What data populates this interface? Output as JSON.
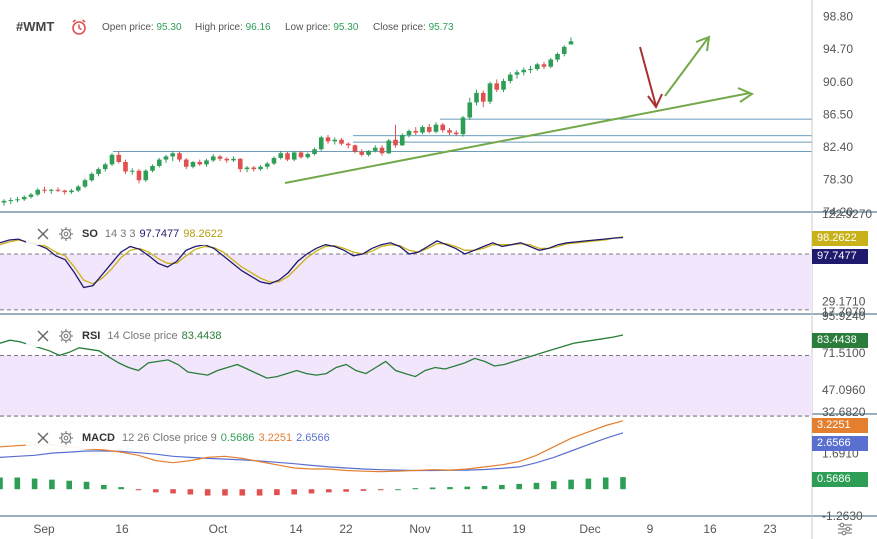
{
  "header": {
    "symbol": "#WMT",
    "open_label": "Open price:",
    "open_value": "95.30",
    "high_label": "High price:",
    "high_value": "96.16",
    "low_label": "Low price:",
    "low_value": "95.30",
    "close_label": "Close price:",
    "close_value": "95.73"
  },
  "indicators": {
    "so": {
      "name": "SO",
      "params": "14 3 3",
      "v1": "97.7477",
      "v2": "98.2622"
    },
    "rsi": {
      "name": "RSI",
      "params": "14 Close price",
      "v1": "83.4438"
    },
    "macd": {
      "name": "MACD",
      "params": "12 26 Close price 9",
      "v1": "0.5686",
      "v2": "3.2251",
      "v3": "2.6566"
    }
  },
  "colors": {
    "up": "#2e9e57",
    "down": "#e05050",
    "so_k": "#1f1a6e",
    "so_d": "#c9b11a",
    "rsi": "#2a7d3a",
    "macd": "#e57f30",
    "signal": "#5a70d0",
    "trendline": "#74a94a",
    "arrow_down": "#a83030",
    "arrow_up": "#74a94a",
    "band_fill": "#f1e6fb",
    "level_line": "#3b7ea6"
  },
  "chart_data": [
    {
      "type": "candlestick",
      "title": "#WMT",
      "ylim": [
        74.2,
        100.9
      ],
      "y_ticks": [
        "98.80",
        "94.70",
        "90.60",
        "86.50",
        "82.40",
        "78.30",
        "74.20"
      ],
      "x_ticks": [
        "Sep",
        "16",
        "Oct",
        "14",
        "22",
        "Nov",
        "11",
        "19",
        "Dec",
        "9",
        "16",
        "23"
      ],
      "series": [
        {
          "o": 75.4,
          "h": 75.8,
          "l": 75.0,
          "c": 75.6
        },
        {
          "o": 75.6,
          "h": 76.0,
          "l": 75.2,
          "c": 75.7
        },
        {
          "o": 75.7,
          "h": 76.1,
          "l": 75.4,
          "c": 75.8
        },
        {
          "o": 75.8,
          "h": 76.3,
          "l": 75.6,
          "c": 76.1
        },
        {
          "o": 76.1,
          "h": 76.6,
          "l": 75.9,
          "c": 76.4
        },
        {
          "o": 76.4,
          "h": 77.2,
          "l": 76.2,
          "c": 77.0
        },
        {
          "o": 77.0,
          "h": 77.4,
          "l": 76.6,
          "c": 76.9
        },
        {
          "o": 76.9,
          "h": 77.1,
          "l": 76.5,
          "c": 77.0
        },
        {
          "o": 77.0,
          "h": 77.3,
          "l": 76.7,
          "c": 76.9
        },
        {
          "o": 76.9,
          "h": 77.0,
          "l": 76.4,
          "c": 76.7
        },
        {
          "o": 76.7,
          "h": 77.1,
          "l": 76.5,
          "c": 76.9
        },
        {
          "o": 76.9,
          "h": 77.6,
          "l": 76.7,
          "c": 77.4
        },
        {
          "o": 77.4,
          "h": 78.4,
          "l": 77.2,
          "c": 78.2
        },
        {
          "o": 78.2,
          "h": 79.2,
          "l": 78.0,
          "c": 79.0
        },
        {
          "o": 79.0,
          "h": 79.8,
          "l": 78.7,
          "c": 79.6
        },
        {
          "o": 79.6,
          "h": 80.4,
          "l": 79.3,
          "c": 80.2
        },
        {
          "o": 80.2,
          "h": 81.6,
          "l": 80.0,
          "c": 81.4
        },
        {
          "o": 81.4,
          "h": 81.9,
          "l": 80.3,
          "c": 80.5
        },
        {
          "o": 80.5,
          "h": 80.8,
          "l": 79.0,
          "c": 79.3
        },
        {
          "o": 79.3,
          "h": 79.7,
          "l": 78.9,
          "c": 79.4
        },
        {
          "o": 79.4,
          "h": 79.6,
          "l": 77.8,
          "c": 78.2
        },
        {
          "o": 78.2,
          "h": 79.6,
          "l": 78.0,
          "c": 79.4
        },
        {
          "o": 79.4,
          "h": 80.2,
          "l": 79.2,
          "c": 80.0
        },
        {
          "o": 80.0,
          "h": 81.0,
          "l": 79.8,
          "c": 80.8
        },
        {
          "o": 80.8,
          "h": 81.4,
          "l": 80.4,
          "c": 81.2
        },
        {
          "o": 81.2,
          "h": 81.9,
          "l": 80.6,
          "c": 81.6
        },
        {
          "o": 81.6,
          "h": 81.8,
          "l": 80.5,
          "c": 80.8
        },
        {
          "o": 80.8,
          "h": 81.0,
          "l": 79.6,
          "c": 79.9
        },
        {
          "o": 79.9,
          "h": 80.6,
          "l": 79.7,
          "c": 80.5
        },
        {
          "o": 80.5,
          "h": 80.8,
          "l": 80.0,
          "c": 80.2
        },
        {
          "o": 80.2,
          "h": 80.9,
          "l": 79.9,
          "c": 80.7
        },
        {
          "o": 80.7,
          "h": 81.5,
          "l": 80.5,
          "c": 81.2
        },
        {
          "o": 81.2,
          "h": 81.4,
          "l": 80.6,
          "c": 80.9
        },
        {
          "o": 80.9,
          "h": 81.1,
          "l": 80.4,
          "c": 80.7
        },
        {
          "o": 80.7,
          "h": 81.2,
          "l": 80.5,
          "c": 80.9
        },
        {
          "o": 80.9,
          "h": 81.0,
          "l": 79.2,
          "c": 79.6
        },
        {
          "o": 79.6,
          "h": 80.0,
          "l": 79.2,
          "c": 79.8
        },
        {
          "o": 79.8,
          "h": 80.0,
          "l": 79.3,
          "c": 79.6
        },
        {
          "o": 79.6,
          "h": 80.1,
          "l": 79.4,
          "c": 79.9
        },
        {
          "o": 79.9,
          "h": 80.5,
          "l": 79.6,
          "c": 80.3
        },
        {
          "o": 80.3,
          "h": 81.2,
          "l": 80.1,
          "c": 81.0
        },
        {
          "o": 81.0,
          "h": 81.9,
          "l": 80.8,
          "c": 81.6
        },
        {
          "o": 81.6,
          "h": 81.8,
          "l": 80.6,
          "c": 80.8
        },
        {
          "o": 80.8,
          "h": 81.9,
          "l": 80.6,
          "c": 81.7
        },
        {
          "o": 81.7,
          "h": 81.9,
          "l": 80.9,
          "c": 81.1
        },
        {
          "o": 81.1,
          "h": 81.7,
          "l": 80.9,
          "c": 81.5
        },
        {
          "o": 81.5,
          "h": 82.3,
          "l": 81.3,
          "c": 82.1
        },
        {
          "o": 82.1,
          "h": 83.8,
          "l": 81.9,
          "c": 83.6
        },
        {
          "o": 83.6,
          "h": 83.9,
          "l": 82.8,
          "c": 83.1
        },
        {
          "o": 83.1,
          "h": 83.6,
          "l": 82.7,
          "c": 83.3
        },
        {
          "o": 83.3,
          "h": 83.5,
          "l": 82.6,
          "c": 82.8
        },
        {
          "o": 82.8,
          "h": 83.0,
          "l": 82.2,
          "c": 82.6
        },
        {
          "o": 82.6,
          "h": 82.7,
          "l": 81.6,
          "c": 81.8
        },
        {
          "o": 81.8,
          "h": 82.1,
          "l": 81.2,
          "c": 81.4
        },
        {
          "o": 81.4,
          "h": 82.0,
          "l": 81.2,
          "c": 81.9
        },
        {
          "o": 81.9,
          "h": 82.6,
          "l": 81.7,
          "c": 82.3
        },
        {
          "o": 82.3,
          "h": 82.6,
          "l": 81.3,
          "c": 81.6
        },
        {
          "o": 81.6,
          "h": 83.4,
          "l": 81.5,
          "c": 83.2
        },
        {
          "o": 83.3,
          "h": 85.2,
          "l": 82.3,
          "c": 82.6
        },
        {
          "o": 82.6,
          "h": 84.1,
          "l": 82.5,
          "c": 83.9
        },
        {
          "o": 83.9,
          "h": 84.6,
          "l": 83.6,
          "c": 84.4
        },
        {
          "o": 84.4,
          "h": 84.9,
          "l": 83.9,
          "c": 84.2
        },
        {
          "o": 84.2,
          "h": 85.1,
          "l": 84.0,
          "c": 84.9
        },
        {
          "o": 84.9,
          "h": 85.3,
          "l": 84.1,
          "c": 84.3
        },
        {
          "o": 84.3,
          "h": 85.5,
          "l": 84.1,
          "c": 85.2
        },
        {
          "o": 85.2,
          "h": 85.4,
          "l": 84.2,
          "c": 84.5
        },
        {
          "o": 84.5,
          "h": 84.8,
          "l": 83.9,
          "c": 84.2
        },
        {
          "o": 84.2,
          "h": 84.5,
          "l": 83.8,
          "c": 84.0
        },
        {
          "o": 84.0,
          "h": 86.3,
          "l": 83.7,
          "c": 86.1
        },
        {
          "o": 86.1,
          "h": 88.6,
          "l": 85.8,
          "c": 88.0
        },
        {
          "o": 88.0,
          "h": 89.6,
          "l": 87.6,
          "c": 89.2
        },
        {
          "o": 89.2,
          "h": 89.5,
          "l": 87.4,
          "c": 88.1
        },
        {
          "o": 88.1,
          "h": 90.6,
          "l": 87.8,
          "c": 90.4
        },
        {
          "o": 90.4,
          "h": 90.9,
          "l": 89.3,
          "c": 89.6
        },
        {
          "o": 89.6,
          "h": 91.0,
          "l": 89.3,
          "c": 90.7
        },
        {
          "o": 90.7,
          "h": 91.8,
          "l": 90.4,
          "c": 91.5
        },
        {
          "o": 91.5,
          "h": 92.1,
          "l": 91.0,
          "c": 91.8
        },
        {
          "o": 91.8,
          "h": 92.4,
          "l": 91.4,
          "c": 92.1
        },
        {
          "o": 92.1,
          "h": 92.6,
          "l": 91.7,
          "c": 92.2
        },
        {
          "o": 92.2,
          "h": 93.0,
          "l": 92.0,
          "c": 92.8
        },
        {
          "o": 92.8,
          "h": 93.1,
          "l": 92.2,
          "c": 92.5
        },
        {
          "o": 92.5,
          "h": 93.6,
          "l": 92.3,
          "c": 93.4
        },
        {
          "o": 93.4,
          "h": 94.3,
          "l": 93.1,
          "c": 94.1
        },
        {
          "o": 94.1,
          "h": 95.2,
          "l": 93.8,
          "c": 95.0
        },
        {
          "o": 95.3,
          "h": 96.2,
          "l": 95.3,
          "c": 95.7
        }
      ],
      "horizontal_levels": [
        85.9,
        83.8,
        83.0,
        81.8
      ]
    },
    {
      "type": "line",
      "title": "SO",
      "ylim": [
        17.707,
        122.927
      ],
      "y_ticks": [
        "122.9270",
        "29.1710",
        "17.7070"
      ],
      "levels": [
        80,
        20
      ],
      "series": [
        {
          "name": "97.7477",
          "values": [
            92,
            95,
            96,
            92,
            90,
            86,
            78,
            74,
            60,
            44,
            46,
            58,
            70,
            82,
            88,
            85,
            78,
            70,
            66,
            72,
            84,
            88,
            90,
            86,
            78,
            70,
            62,
            56,
            50,
            48,
            52,
            60,
            72,
            80,
            86,
            90,
            88,
            84,
            78,
            80,
            86,
            90,
            92,
            88,
            80,
            82,
            88,
            94,
            90,
            86,
            80,
            84,
            88,
            92,
            88,
            90,
            92,
            88,
            84,
            86,
            90,
            92,
            93,
            94,
            95,
            96,
            97,
            97.7
          ]
        },
        {
          "name": "98.2622",
          "values": [
            90,
            93,
            95,
            93,
            91,
            88,
            82,
            78,
            66,
            52,
            48,
            54,
            64,
            76,
            84,
            86,
            82,
            75,
            70,
            70,
            78,
            85,
            88,
            87,
            82,
            74,
            66,
            60,
            54,
            50,
            50,
            56,
            66,
            76,
            83,
            88,
            89,
            86,
            82,
            80,
            83,
            88,
            90,
            89,
            84,
            82,
            86,
            91,
            91,
            88,
            84,
            84,
            86,
            90,
            90,
            90,
            91,
            90,
            86,
            86,
            88,
            91,
            92,
            93,
            94,
            95,
            97,
            98.3
          ]
        }
      ]
    },
    {
      "type": "line",
      "title": "RSI",
      "ylim": [
        32.682,
        95.924
      ],
      "y_ticks": [
        "95.9240",
        "71.5100",
        "47.0960",
        "32.6820"
      ],
      "levels": [
        70,
        30
      ],
      "series": [
        {
          "name": "83.4438",
          "values": [
            78,
            80,
            79,
            77,
            75,
            73,
            70,
            72,
            75,
            74,
            73,
            69,
            65,
            62,
            60,
            65,
            66,
            67,
            64,
            59,
            58,
            57,
            60,
            62,
            64,
            61,
            58,
            55,
            56,
            58,
            60,
            58,
            57,
            58,
            62,
            64,
            60,
            58,
            62,
            66,
            60,
            58,
            56,
            60,
            62,
            61,
            63,
            65,
            68,
            66,
            63,
            64,
            66,
            68,
            70,
            72,
            74,
            76,
            78,
            79,
            80,
            81,
            82,
            83.4
          ]
        }
      ]
    },
    {
      "type": "bar+line",
      "title": "MACD",
      "ylim": [
        -1.263,
        3.45
      ],
      "y_ticks": [
        "-1.2630",
        "1.6910"
      ],
      "series": [
        {
          "name": "0.5686",
          "values": [
            0.55,
            0.55,
            0.5,
            0.45,
            0.4,
            0.35,
            0.2,
            0.1,
            -0.05,
            -0.15,
            -0.2,
            -0.25,
            -0.3,
            -0.3,
            -0.3,
            -0.3,
            -0.28,
            -0.25,
            -0.2,
            -0.15,
            -0.12,
            -0.08,
            -0.05,
            0.0,
            0.05,
            0.08,
            0.1,
            0.12,
            0.15,
            0.2,
            0.25,
            0.3,
            0.38,
            0.45,
            0.5,
            0.55,
            0.57
          ]
        },
        {
          "name": "3.2251",
          "values": [
            2.0,
            2.05,
            2.1,
            2.1,
            2.0,
            1.9,
            1.85,
            1.75,
            1.6,
            1.35,
            1.25,
            1.35,
            1.5,
            1.55,
            1.45,
            1.3,
            1.15,
            1.0,
            0.95,
            0.95,
            0.88,
            0.85,
            0.83,
            0.85,
            0.88,
            0.92,
            0.9,
            0.95,
            1.05,
            1.15,
            1.3,
            1.6,
            2.0,
            2.4,
            2.7,
            3.0,
            3.2251
          ]
        },
        {
          "name": "2.6566",
          "values": [
            1.5,
            1.55,
            1.6,
            1.7,
            1.75,
            1.8,
            1.8,
            1.78,
            1.72,
            1.65,
            1.55,
            1.5,
            1.45,
            1.42,
            1.38,
            1.33,
            1.27,
            1.2,
            1.12,
            1.05,
            1.0,
            0.95,
            0.92,
            0.9,
            0.88,
            0.88,
            0.89,
            0.9,
            0.93,
            0.98,
            1.05,
            1.25,
            1.5,
            1.8,
            2.1,
            2.4,
            2.6566
          ]
        }
      ]
    }
  ]
}
